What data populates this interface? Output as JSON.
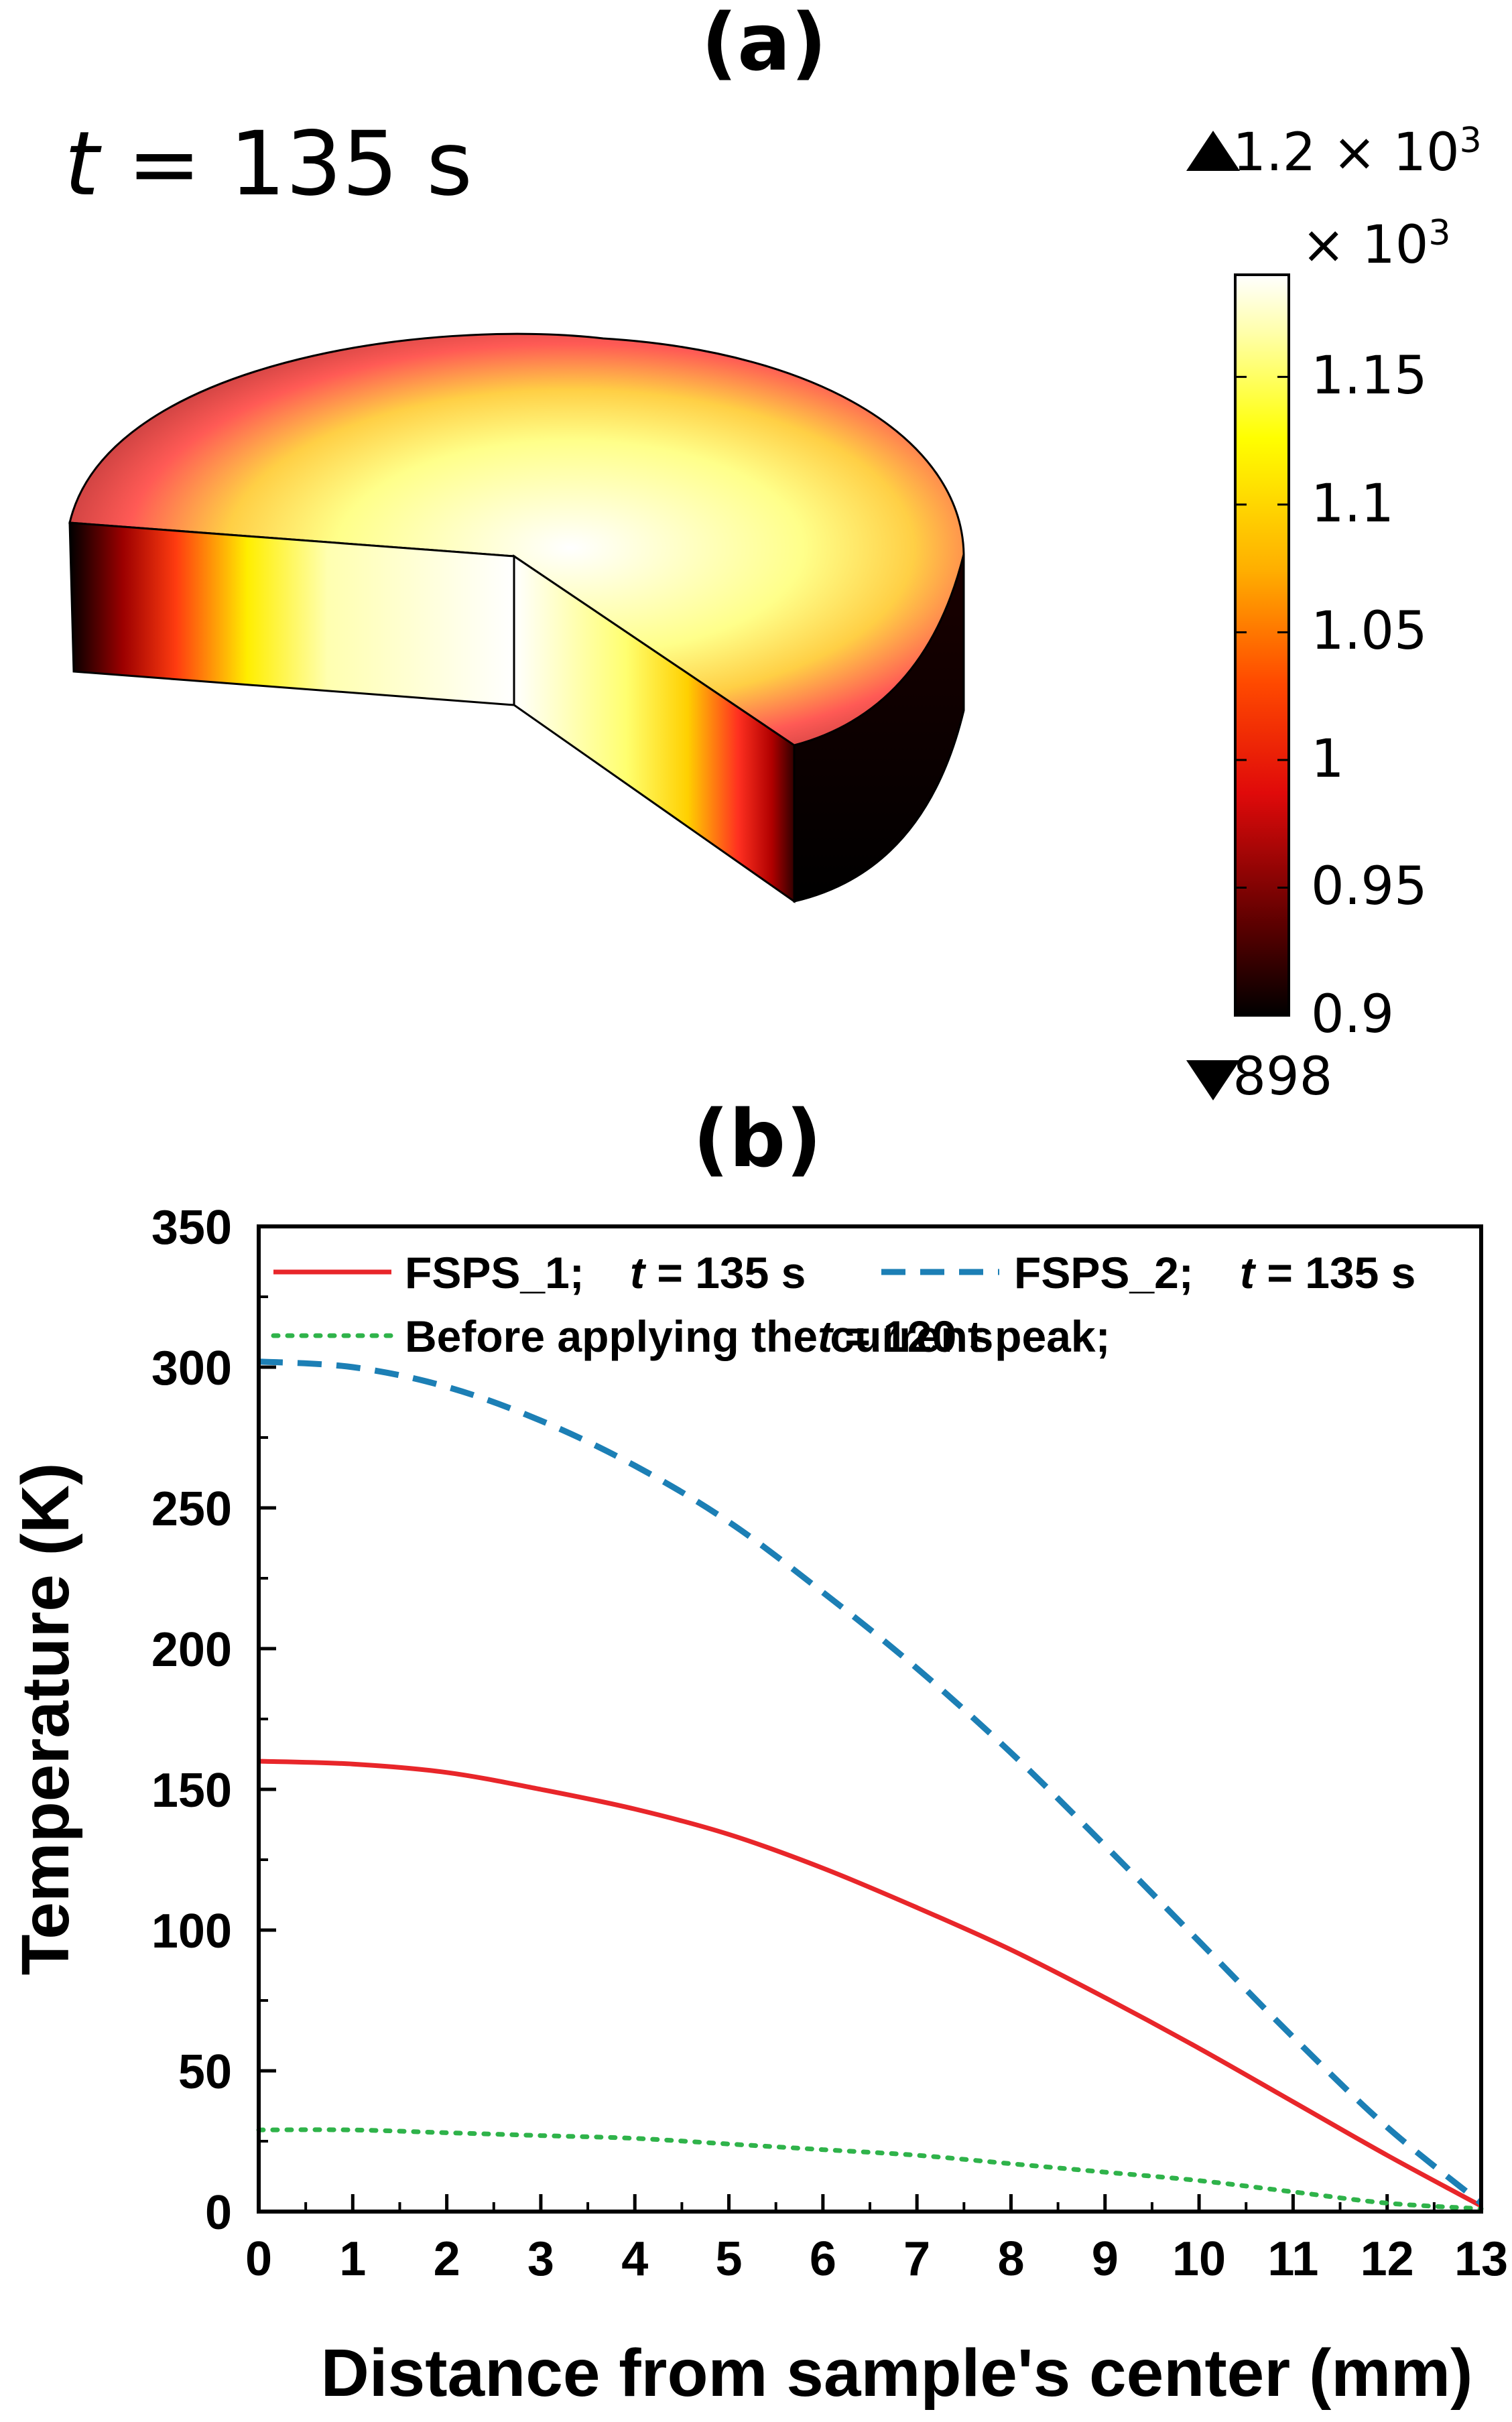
{
  "panel_a": {
    "title": "(a)",
    "time_label_var": "t",
    "time_label_rest": " = 135 s",
    "colorbar": {
      "max_label": "1.2 × 10",
      "max_exp": "3",
      "multiplier": "× 10",
      "multiplier_exp": "3",
      "min_label": "898",
      "ticks": [
        "1.15",
        "1.1",
        "1.05",
        "1",
        "0.95",
        "0.9"
      ],
      "tick_values": [
        1.15,
        1.1,
        1.05,
        1.0,
        0.95,
        0.9
      ],
      "range": [
        0.9,
        1.19
      ],
      "colors": [
        "#000000",
        "#8b0000",
        "#ff2a1a",
        "#ff8a00",
        "#ffff00",
        "#ffffe0",
        "#ffffff"
      ]
    }
  },
  "panel_b": {
    "title": "(b)"
  },
  "chart_data": {
    "type": "line",
    "title": "(b)",
    "xlabel": "Distance from sample's center (mm)",
    "ylabel": "Temperature (K)",
    "xlim": [
      0,
      13
    ],
    "ylim": [
      0,
      350
    ],
    "xticks": [
      0,
      1,
      2,
      3,
      4,
      5,
      6,
      7,
      8,
      9,
      10,
      11,
      12,
      13
    ],
    "yticks": [
      0,
      50,
      100,
      150,
      200,
      250,
      300,
      350
    ],
    "series": [
      {
        "name": "FSPS_1;",
        "time_var": "t",
        "time_rest": " = 135 s",
        "color": "#e8262a",
        "style": "solid",
        "x": [
          0,
          1,
          2,
          3,
          4,
          5,
          6,
          7,
          8,
          9,
          10,
          11,
          12,
          13
        ],
        "values": [
          160,
          159,
          156,
          150,
          143,
          134,
          122,
          108,
          93,
          76,
          58,
          39,
          20,
          2
        ]
      },
      {
        "name": "FSPS_2;",
        "time_var": "t",
        "time_rest": " = 135 s",
        "color": "#1c7fb5",
        "style": "dashed",
        "x": [
          0,
          1,
          2,
          3,
          4,
          5,
          6,
          7,
          8,
          9,
          10,
          11,
          12,
          13
        ],
        "values": [
          302,
          300,
          293,
          281,
          265,
          245,
          220,
          193,
          163,
          130,
          96,
          62,
          30,
          3
        ]
      },
      {
        "name": "Before applying the current peak;",
        "time_var": "t",
        "time_rest": " = 120 s",
        "color": "#2fb34a",
        "style": "dotted",
        "x": [
          0,
          1,
          2,
          3,
          4,
          5,
          6,
          7,
          8,
          9,
          10,
          11,
          12,
          13
        ],
        "values": [
          29,
          29,
          28,
          27,
          26,
          24,
          22,
          20,
          17,
          14,
          11,
          7,
          3,
          1
        ]
      }
    ]
  }
}
